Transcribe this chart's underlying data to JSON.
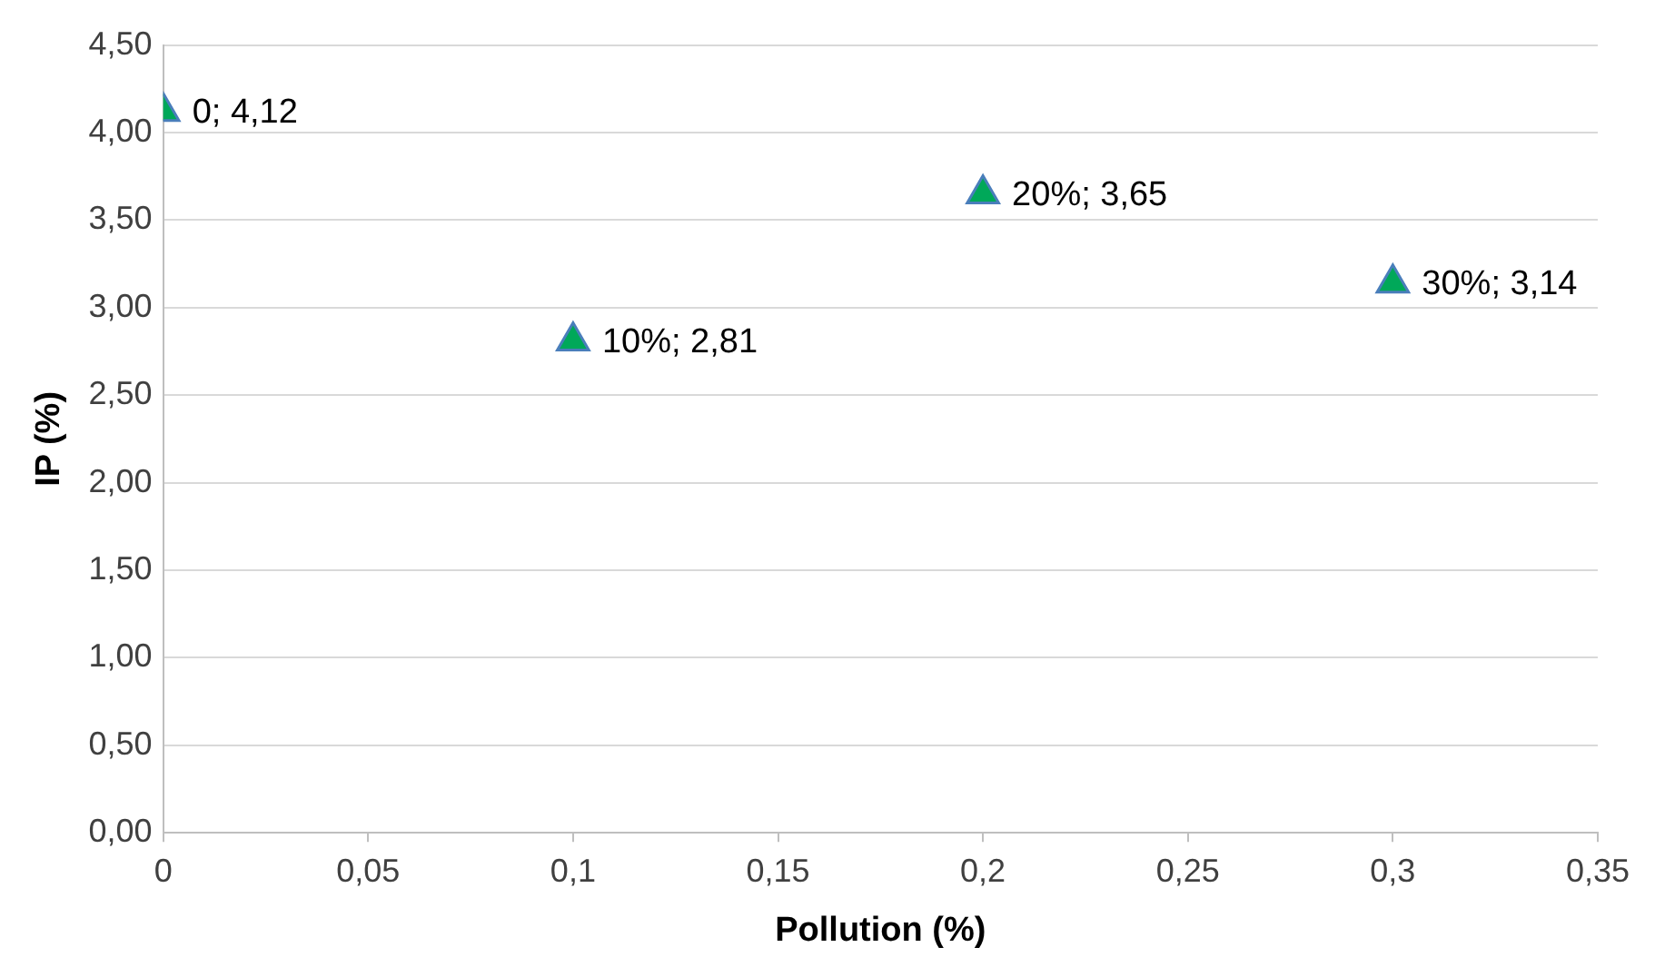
{
  "chart_data": {
    "type": "scatter",
    "xlabel": "Pollution (%)",
    "ylabel": "IP (%)",
    "x": [
      0,
      0.1,
      0.2,
      0.3
    ],
    "series": [
      {
        "color": "#00a859",
        "values": [
          4.12,
          2.81,
          3.65,
          3.14
        ],
        "value_labels": [
          "0; 4,12",
          "10%; 2,81",
          "20%; 3,65",
          "30%; 3,14"
        ]
      }
    ],
    "xlim": [
      0,
      0.35
    ],
    "xticks": [
      0,
      {
        "value": 0.05,
        "label": "0,05"
      },
      {
        "value": 0.1,
        "label": "0,1"
      },
      {
        "value": 0.15,
        "label": "0,15"
      },
      {
        "value": 0.2,
        "label": "0,2"
      },
      {
        "value": 0.25,
        "label": "0,25"
      },
      {
        "value": 0.3,
        "label": "0,3"
      },
      {
        "value": 0.35,
        "label": "0,35"
      }
    ],
    "ylim": [
      0,
      4.5
    ],
    "yticks": [
      {
        "value": 0,
        "label": "0,00"
      },
      {
        "value": 0.5,
        "label": "0,50"
      },
      {
        "value": 1,
        "label": "1,00"
      },
      {
        "value": 1.5,
        "label": "1,50"
      },
      {
        "value": 2,
        "label": "2,00"
      },
      {
        "value": 2.5,
        "label": "2,50"
      },
      {
        "value": 3,
        "label": "3,00"
      },
      {
        "value": 3.5,
        "label": "3,50"
      },
      {
        "value": 4,
        "label": "4,00"
      },
      {
        "value": 4.5,
        "label": "4,50"
      }
    ],
    "grid": "y",
    "legend": false,
    "marker": "triangle"
  }
}
